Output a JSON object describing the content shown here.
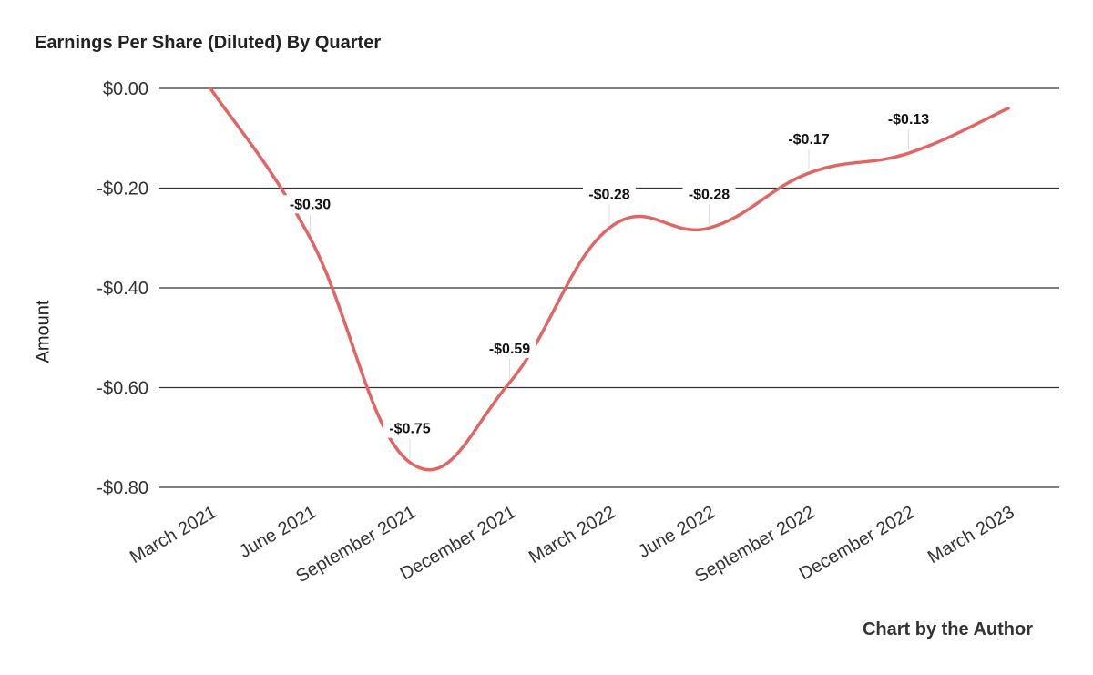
{
  "chart_data": {
    "type": "line",
    "title": "Earnings Per Share (Diluted) By Quarter",
    "xlabel": "",
    "ylabel": "Amount",
    "categories": [
      "March 2021",
      "June 2021",
      "September 2021",
      "December 2021",
      "March 2022",
      "June 2022",
      "September 2022",
      "December 2022",
      "March 2023"
    ],
    "series": [
      {
        "name": "",
        "values": [
          0.0,
          -0.3,
          -0.75,
          -0.59,
          -0.28,
          -0.28,
          -0.17,
          -0.13,
          -0.04
        ]
      }
    ],
    "data_labels": [
      "",
      "-$0.30",
      "-$0.75",
      "-$0.59",
      "-$0.28",
      "-$0.28",
      "-$0.17",
      "-$0.13",
      ""
    ],
    "y_ticks": [
      "$0.00",
      "-$0.20",
      "-$0.40",
      "-$0.60",
      "-$0.80"
    ],
    "ylim": [
      -0.8,
      0.0
    ],
    "grid": true,
    "line_color": "#e06666",
    "source": "Chart by the Author"
  }
}
